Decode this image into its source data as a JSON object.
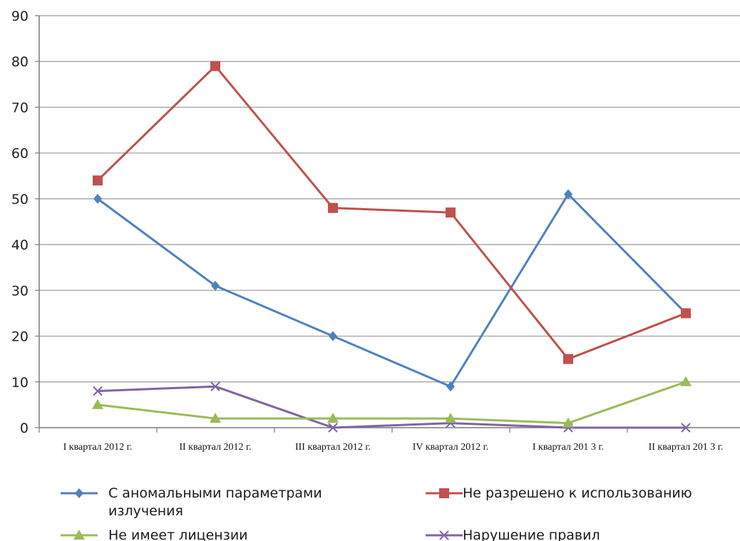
{
  "chart_data": {
    "type": "line",
    "categories": [
      "I квартал 2012 г.",
      "II квартал 2012 г.",
      "III  квартал 2012 г.",
      "IV квартал 2012 г.",
      "I квартал 201  3 г.",
      "II  квартал 201  3 г."
    ],
    "ylim": [
      0,
      90
    ],
    "yticks": [
      0,
      10,
      20,
      30,
      40,
      50,
      60,
      70,
      80,
      90
    ],
    "grid": true,
    "legend_position": "bottom",
    "series": [
      {
        "name": "С аномальными параметрами излучения",
        "color": "#4f81bd",
        "marker": "diamond",
        "values": [
          50,
          31,
          20,
          9,
          51,
          25
        ]
      },
      {
        "name": "Не разрешено к использованию",
        "color": "#c0504d",
        "marker": "square",
        "values": [
          54,
          79,
          48,
          47,
          15,
          25
        ]
      },
      {
        "name": "Не имеет лицензии",
        "color": "#9bbb59",
        "marker": "triangle",
        "values": [
          5,
          2,
          2,
          2,
          1,
          10
        ]
      },
      {
        "name": "Нарушение правил",
        "color": "#8064a2",
        "marker": "x",
        "values": [
          8,
          9,
          0,
          1,
          0,
          0
        ]
      }
    ]
  }
}
